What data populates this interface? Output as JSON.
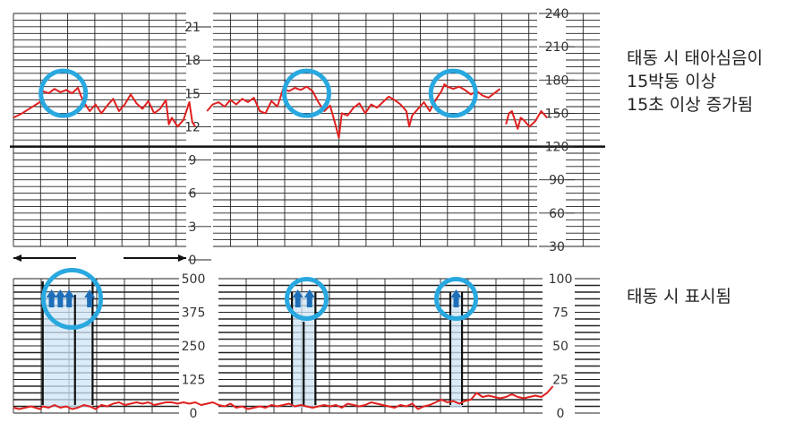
{
  "colors": {
    "trace": "#e02020",
    "marker": "#29a8e0",
    "arrow": "#1e6fb8",
    "shade": "#cfe6f5",
    "grid": "#222222"
  },
  "annotations": {
    "top": [
      "태동 시 태아심음이",
      "15박동 이상",
      "15초 이상 증가됨"
    ],
    "bottom": "태동 시 표시됨"
  },
  "chart_data": [
    {
      "type": "line",
      "name_hint": "fetal-heart-rate",
      "left_axis": {
        "ticks": [
          0,
          3,
          6,
          9,
          12,
          15,
          18,
          21
        ],
        "range": [
          0,
          21
        ]
      },
      "right_axis": {
        "ticks": [
          30,
          60,
          90,
          120,
          150,
          180,
          210,
          240
        ],
        "range": [
          30,
          240
        ],
        "baseline": 120
      },
      "x_range": [
        0,
        100
      ],
      "series": [
        {
          "segment": 1,
          "points": [
            [
              0,
              146
            ],
            [
              1.5,
              150
            ],
            [
              3,
              155
            ],
            [
              4.5,
              160
            ],
            [
              5,
              170
            ],
            [
              6,
              168
            ],
            [
              7,
              172
            ],
            [
              8,
              169
            ],
            [
              9,
              171
            ],
            [
              10,
              168
            ],
            [
              11,
              173
            ],
            [
              11.5,
              166
            ],
            [
              12,
              160
            ],
            [
              13,
              152
            ],
            [
              14,
              158
            ],
            [
              15,
              150
            ],
            [
              16,
              157
            ],
            [
              17,
              163
            ],
            [
              18,
              152
            ],
            [
              19,
              158
            ],
            [
              20,
              167
            ],
            [
              21,
              159
            ],
            [
              22,
              154
            ],
            [
              23,
              161
            ],
            [
              24,
              150
            ],
            [
              25,
              154
            ],
            [
              26,
              162
            ],
            [
              26.5,
              140
            ],
            [
              27,
              146
            ],
            [
              28,
              138
            ],
            [
              29,
              144
            ],
            [
              30,
              160
            ],
            [
              30.5,
              142
            ],
            [
              31,
              138
            ]
          ]
        },
        {
          "segment": 2,
          "points": [
            [
              33,
              152
            ],
            [
              34,
              158
            ],
            [
              35,
              160
            ],
            [
              36,
              156
            ],
            [
              37,
              162
            ],
            [
              38,
              158
            ],
            [
              39,
              163
            ],
            [
              40,
              160
            ],
            [
              41,
              164
            ],
            [
              42,
              152
            ],
            [
              43,
              150
            ],
            [
              44,
              161
            ],
            [
              45,
              156
            ],
            [
              46,
              172
            ],
            [
              47,
              170
            ],
            [
              48,
              173
            ],
            [
              49,
              171
            ],
            [
              50,
              174
            ],
            [
              51,
              170
            ],
            [
              52,
              160
            ],
            [
              53,
              152
            ],
            [
              54,
              157
            ],
            [
              55,
              138
            ],
            [
              55.5,
              128
            ],
            [
              56,
              150
            ],
            [
              57,
              148
            ],
            [
              58,
              155
            ],
            [
              59,
              159
            ],
            [
              60,
              150
            ],
            [
              61,
              158
            ],
            [
              62,
              155
            ],
            [
              63,
              160
            ],
            [
              64,
              165
            ],
            [
              65,
              162
            ],
            [
              66,
              158
            ],
            [
              67,
              152
            ],
            [
              67.5,
              138
            ],
            [
              68,
              148
            ],
            [
              69,
              154
            ],
            [
              70,
              160
            ],
            [
              71,
              152
            ],
            [
              72,
              162
            ],
            [
              73,
              170
            ],
            [
              73.5,
              176
            ],
            [
              74,
              174
            ],
            [
              75,
              172
            ],
            [
              76,
              174
            ],
            [
              77,
              171
            ],
            [
              78,
              167
            ],
            [
              79,
              170
            ],
            [
              80,
              166
            ],
            [
              81,
              164
            ],
            [
              82,
              168
            ],
            [
              83,
              172
            ]
          ]
        },
        {
          "segment": 3,
          "points": [
            [
              84,
              140
            ],
            [
              84.5,
              150
            ],
            [
              85,
              152
            ],
            [
              86,
              136
            ],
            [
              86.5,
              146
            ],
            [
              87,
              144
            ],
            [
              88,
              138
            ],
            [
              89,
              143
            ],
            [
              90,
              152
            ],
            [
              91,
              146
            ]
          ]
        }
      ],
      "markers": [
        8.5,
        50,
        75
      ]
    },
    {
      "type": "line",
      "name_hint": "fetal-movement",
      "left_axis": {
        "ticks": [
          0,
          125,
          250,
          375,
          500
        ],
        "range": [
          0,
          500
        ]
      },
      "right_axis": {
        "ticks": [
          0,
          25,
          50,
          75,
          100
        ],
        "range": [
          0,
          100
        ]
      },
      "x_range": [
        0,
        100
      ],
      "series": [
        {
          "points": [
            [
              0,
              4
            ],
            [
              1,
              3
            ],
            [
              3,
              5
            ],
            [
              4.5,
              3
            ],
            [
              5,
              5
            ],
            [
              6,
              4
            ],
            [
              7,
              6
            ],
            [
              8,
              4
            ],
            [
              9,
              5
            ],
            [
              10,
              3
            ],
            [
              11,
              4
            ],
            [
              12,
              6
            ],
            [
              13,
              5
            ],
            [
              14,
              3
            ],
            [
              15,
              6
            ],
            [
              16,
              5
            ],
            [
              17,
              7
            ],
            [
              18,
              8
            ],
            [
              19,
              6
            ],
            [
              20,
              7
            ],
            [
              21,
              8
            ],
            [
              22,
              7
            ],
            [
              23,
              8
            ],
            [
              24,
              6
            ],
            [
              25,
              7
            ],
            [
              26,
              8
            ],
            [
              27,
              8
            ],
            [
              28,
              7
            ],
            [
              29,
              8
            ],
            [
              30,
              7
            ],
            [
              31,
              8
            ],
            [
              32,
              6
            ],
            [
              33,
              7
            ],
            [
              34,
              8
            ],
            [
              35,
              6
            ],
            [
              36,
              5
            ],
            [
              37,
              7
            ],
            [
              38,
              4
            ],
            [
              39,
              5
            ],
            [
              40,
              3
            ],
            [
              41,
              4
            ],
            [
              42,
              5
            ],
            [
              43,
              4
            ],
            [
              44,
              6
            ],
            [
              45,
              5
            ],
            [
              46,
              6
            ],
            [
              47,
              7
            ],
            [
              48,
              5
            ],
            [
              49,
              6
            ],
            [
              50,
              5
            ],
            [
              51,
              4
            ],
            [
              52,
              5
            ],
            [
              53,
              6
            ],
            [
              54,
              5
            ],
            [
              55,
              6
            ],
            [
              56,
              4
            ],
            [
              57,
              7
            ],
            [
              58,
              6
            ],
            [
              59,
              5
            ],
            [
              60,
              6
            ],
            [
              61,
              8
            ],
            [
              62,
              7
            ],
            [
              63,
              6
            ],
            [
              64,
              5
            ],
            [
              65,
              4
            ],
            [
              66,
              6
            ],
            [
              67,
              5
            ],
            [
              68,
              7
            ],
            [
              69,
              3
            ],
            [
              70,
              5
            ],
            [
              71,
              6
            ],
            [
              72,
              8
            ],
            [
              73,
              10
            ],
            [
              74,
              8
            ],
            [
              75,
              9
            ],
            [
              76,
              7
            ],
            [
              77,
              9
            ],
            [
              78,
              10
            ],
            [
              79,
              15
            ],
            [
              80,
              12
            ],
            [
              81,
              13
            ],
            [
              82,
              12
            ],
            [
              83,
              11
            ],
            [
              84,
              12
            ],
            [
              85,
              14
            ],
            [
              86,
              12
            ],
            [
              87,
              11
            ],
            [
              88,
              12
            ],
            [
              89,
              13
            ],
            [
              90,
              12
            ],
            [
              91,
              15
            ],
            [
              92,
              20
            ]
          ]
        }
      ],
      "movement_events": [
        {
          "arrows": [
            6.5,
            8,
            9.5,
            13
          ],
          "bars": [
            [
              5,
              98
            ],
            [
              10.5,
              88
            ],
            [
              13.5,
              98
            ]
          ]
        },
        {
          "arrows": [
            48.5,
            50.5
          ],
          "bars": [
            [
              47.5,
              90
            ],
            [
              49.5,
              68
            ],
            [
              51.5,
              90
            ]
          ]
        },
        {
          "arrows": [
            75.5
          ],
          "bars": [
            [
              74.5,
              90
            ],
            [
              76.5,
              90
            ]
          ]
        }
      ],
      "markers": [
        10,
        50,
        75.5
      ]
    }
  ]
}
